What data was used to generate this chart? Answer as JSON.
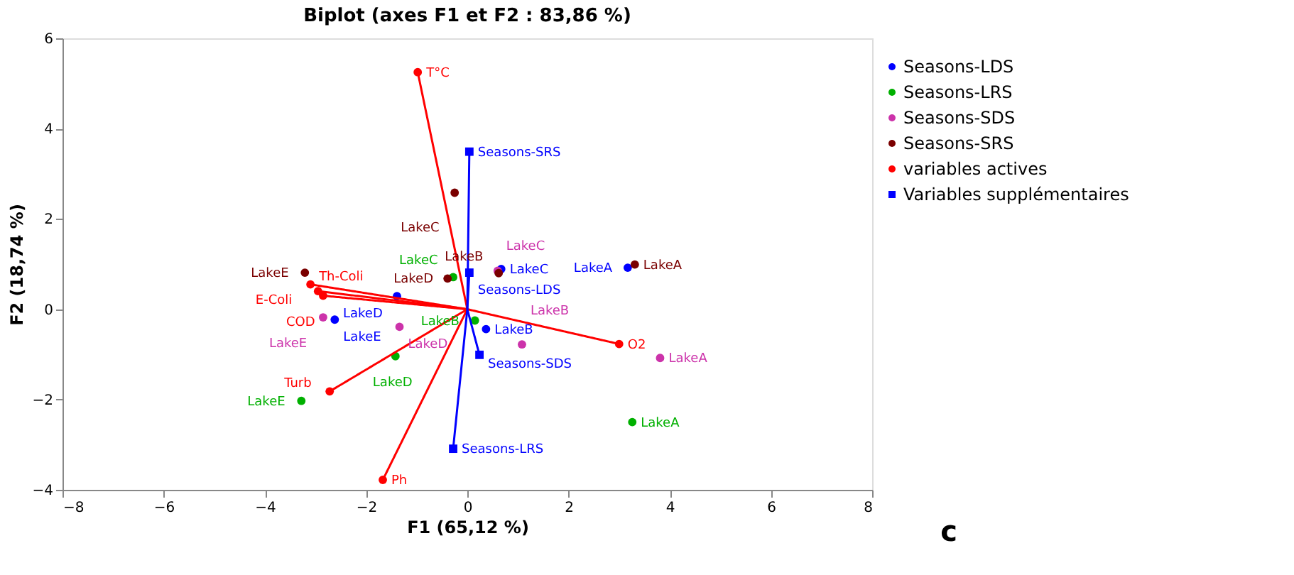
{
  "chart_data": {
    "type": "scatter",
    "title": "Biplot (axes F1 et F2 : 83,86 %)",
    "xlabel": "F1 (65,12 %)",
    "ylabel": "F2 (18,74 %)",
    "xlim": [
      -8,
      8
    ],
    "xticks": [
      -8,
      -6,
      -4,
      -2,
      0,
      2,
      4,
      6,
      8
    ],
    "ylim": [
      -4,
      6
    ],
    "yticks": [
      -4,
      -2,
      0,
      2,
      4,
      6
    ],
    "grid": false,
    "legend": "right",
    "series": [
      {
        "name": "Seasons-LDS",
        "color": "#0000ff",
        "marker": "circle",
        "x": [
          3.17,
          0.37,
          0.67,
          -1.39,
          -2.62
        ],
        "values": [
          0.92,
          -0.44,
          0.89,
          0.29,
          -0.23
        ],
        "value_labels": [
          "LakeA",
          "LakeB",
          "LakeC",
          "LakeD",
          "LakeE"
        ]
      },
      {
        "name": "Seasons-LRS",
        "color": "#00b000",
        "marker": "circle",
        "x": [
          3.26,
          0.15,
          -0.28,
          -1.42,
          -3.28
        ],
        "values": [
          -2.5,
          -0.25,
          0.71,
          -1.04,
          -2.03
        ],
        "value_labels": [
          "LakeA",
          "LakeB",
          "LakeC",
          "LakeD",
          "LakeE"
        ]
      },
      {
        "name": "Seasons-SDS",
        "color": "#cc33aa",
        "marker": "circle",
        "x": [
          3.81,
          1.08,
          0.6,
          -1.34,
          -2.85
        ],
        "values": [
          -1.08,
          -0.78,
          0.85,
          -0.39,
          -0.18
        ],
        "value_labels": [
          "LakeA",
          "LakeB",
          "LakeC",
          "LakeD",
          "LakeE"
        ]
      },
      {
        "name": "Seasons-SRS",
        "color": "#7a0000",
        "marker": "circle",
        "x": [
          3.31,
          0.62,
          -0.25,
          -0.39,
          -3.21
        ],
        "values": [
          0.99,
          0.8,
          2.58,
          0.68,
          0.81
        ],
        "value_labels": [
          "LakeA",
          "LakeB",
          "LakeC",
          "LakeD",
          "LakeE"
        ]
      },
      {
        "name": "variables actives",
        "color": "#ff0000",
        "marker": "circle",
        "line_style": "solid",
        "x": [
          -0.98,
          -3.1,
          -2.95,
          -2.85,
          -2.72,
          -1.67,
          3.0
        ],
        "values": [
          5.25,
          0.55,
          0.4,
          0.3,
          -1.82,
          -3.78,
          -0.77
        ],
        "value_labels": [
          "T°C",
          "Th-Coli",
          "E-Coli",
          "COD",
          "Turb",
          "Ph",
          "O2"
        ]
      },
      {
        "name": "Variables supplémentaires",
        "color": "#0000ff",
        "marker": "square",
        "line_style": "solid",
        "x": [
          0.04,
          0.04,
          0.24,
          -0.28
        ],
        "values": [
          3.49,
          0.81,
          -1.01,
          -3.09
        ],
        "value_labels": [
          "Seasons-SRS",
          "Seasons-LDS",
          "Seasons-SDS",
          "Seasons-LRS"
        ]
      }
    ],
    "annotations": [
      "c"
    ]
  }
}
